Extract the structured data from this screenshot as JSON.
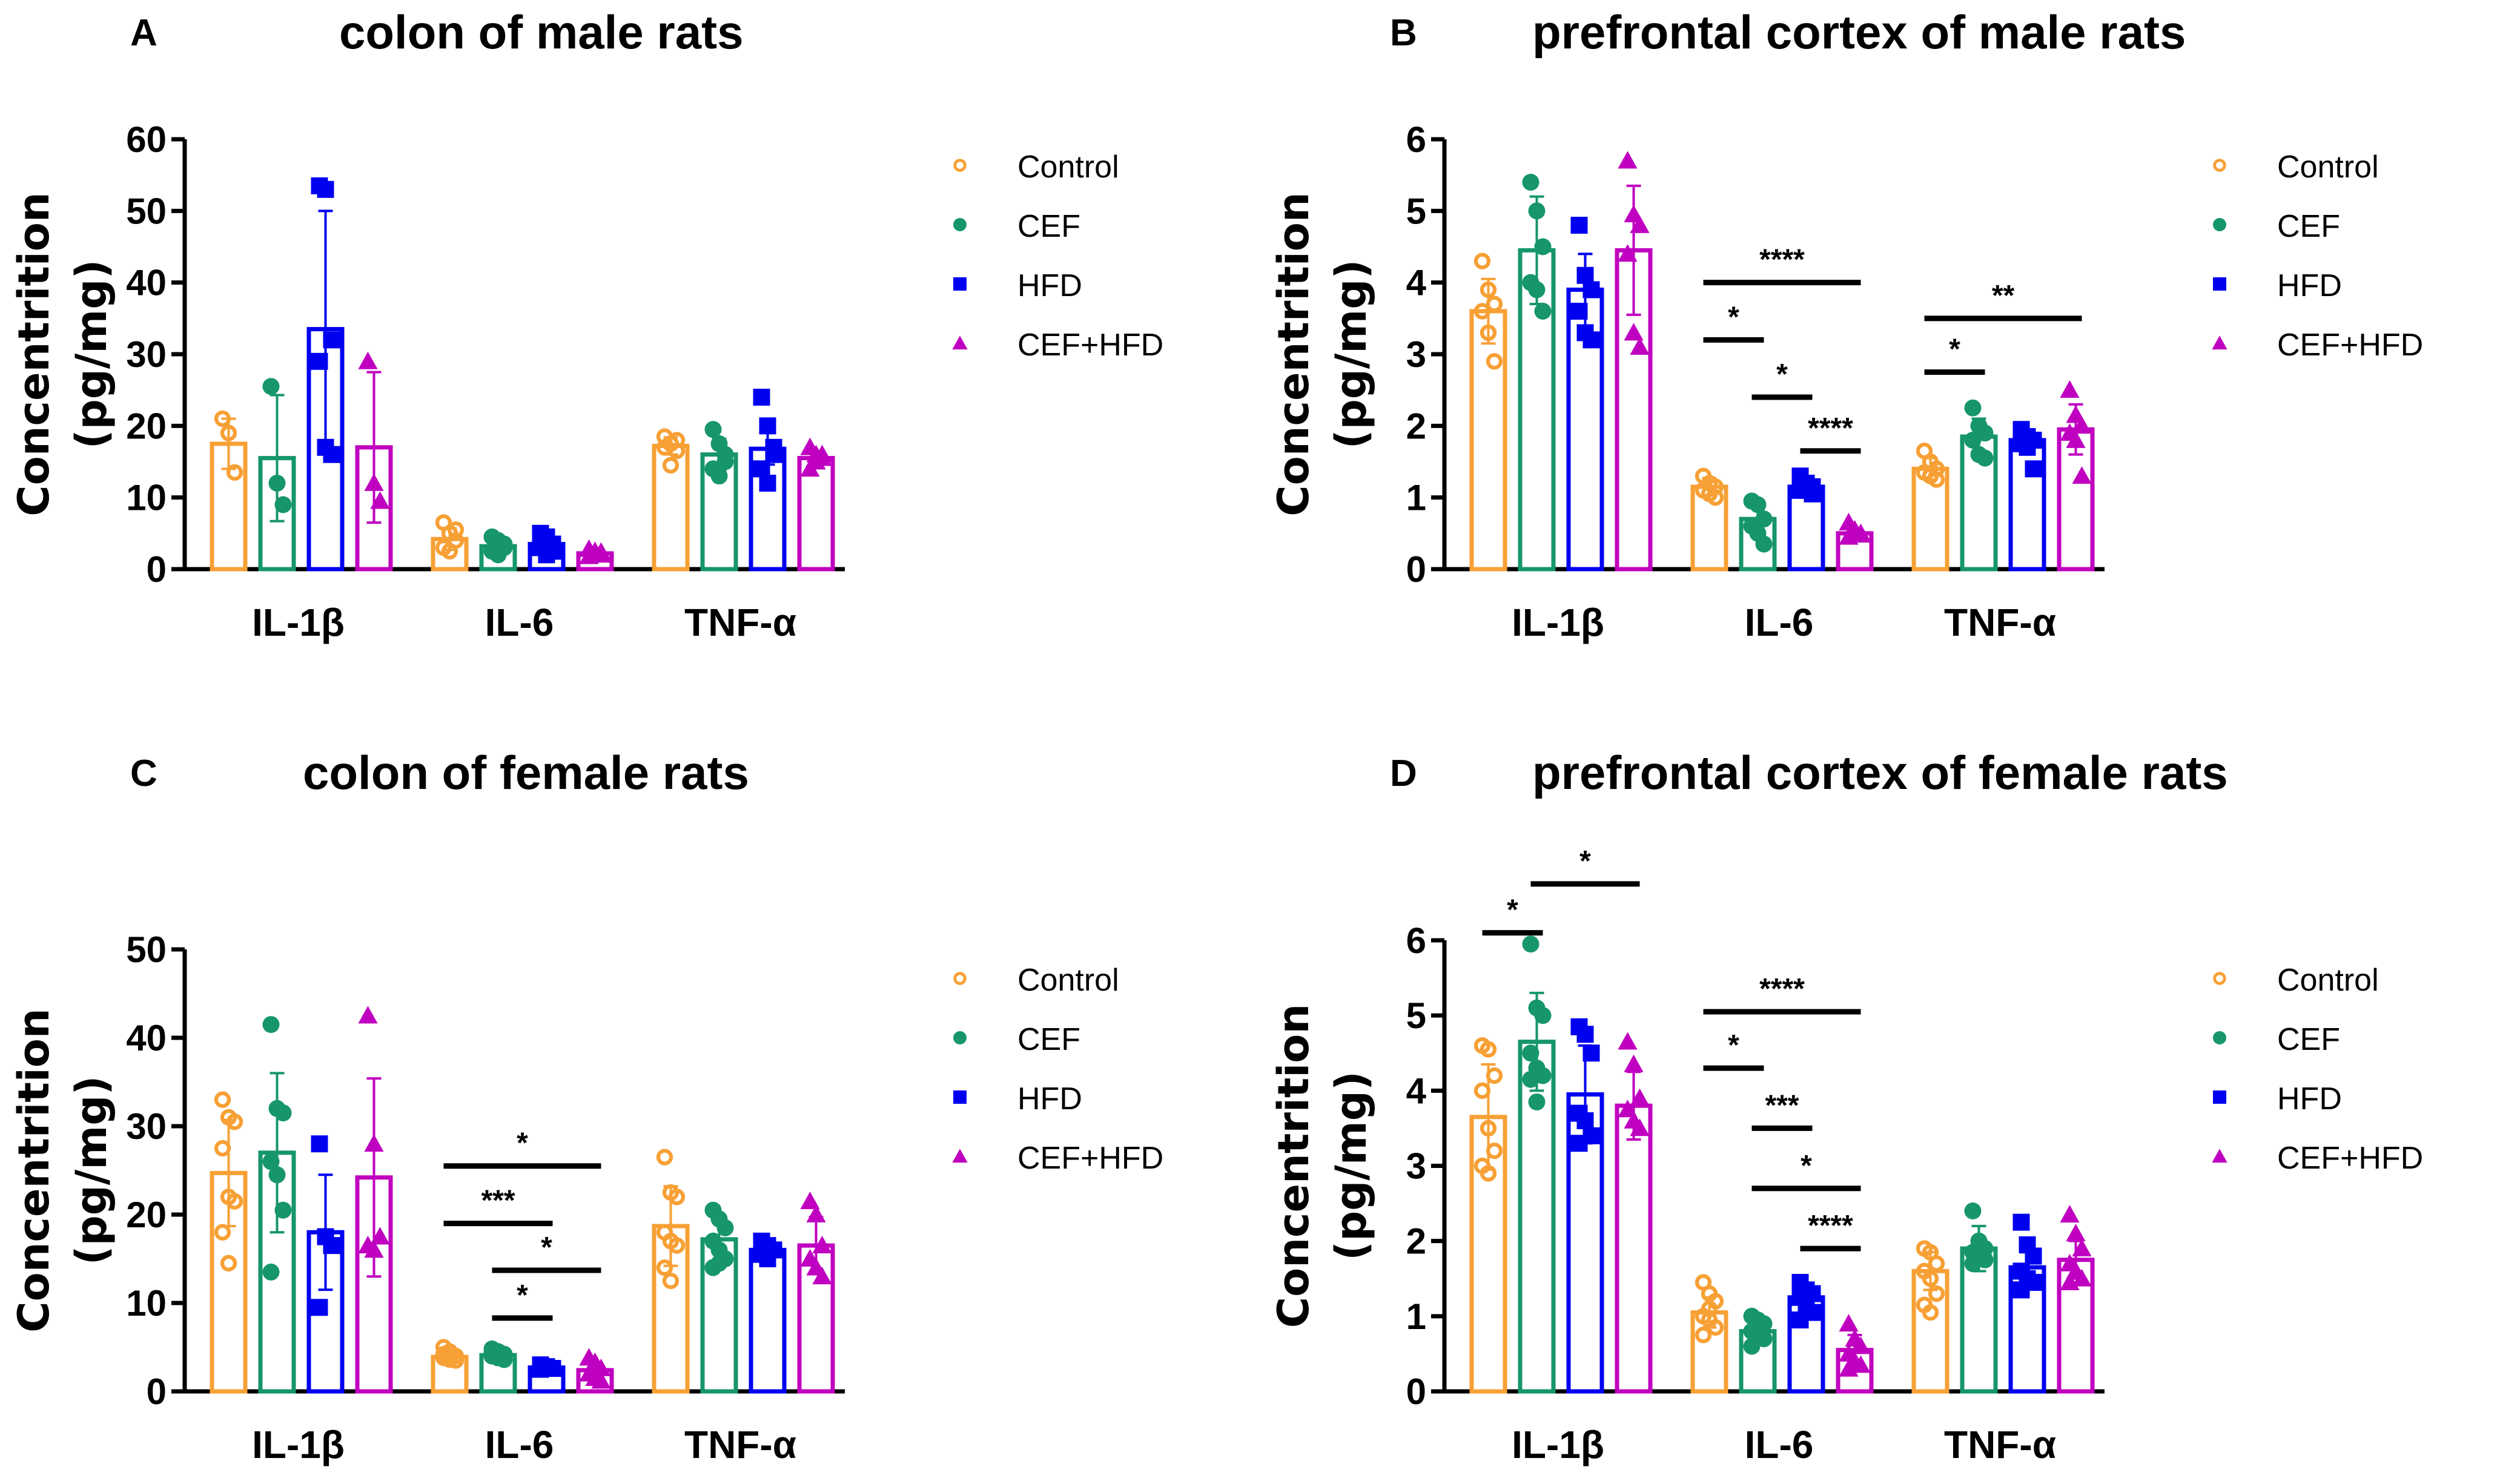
{
  "chart_data": [
    {
      "type": "bar",
      "panel": "A",
      "title": "colon of male rats",
      "ylabel": "Concentrition\n(pg/mg)",
      "ylabel_lines": [
        "Concentrition",
        "(pg/mg)"
      ],
      "xlabel": "",
      "categories": [
        "IL-1β",
        "IL-6",
        "TNF-α"
      ],
      "ylim": [
        0,
        60
      ],
      "yticks": [
        0,
        10,
        20,
        30,
        40,
        50,
        60
      ],
      "grid": false,
      "legend_position": "right",
      "series": [
        {
          "name": "Control",
          "values": [
            17.5,
            4.2,
            17.2
          ],
          "sd": [
            3.5,
            1.5,
            1.2
          ],
          "points": [
            [
              21,
              19,
              13.5
            ],
            [
              6.5,
              5,
              4,
              3,
              2.5,
              5.5
            ],
            [
              18.5,
              17.5,
              16.5,
              17,
              14.5,
              18
            ]
          ]
        },
        {
          "name": "CEF",
          "values": [
            15.5,
            3.2,
            16
          ],
          "sd": [
            8.8,
            1.0,
            2.2
          ],
          "points": [
            [
              25.5,
              12,
              9
            ],
            [
              4.5,
              4,
              3.5,
              2.5,
              2,
              3
            ],
            [
              19.5,
              17.5,
              15,
              14,
              13,
              16
            ]
          ]
        },
        {
          "name": "HFD",
          "values": [
            33.5,
            3.5,
            16.8
          ],
          "sd": [
            16.5,
            1.3,
            2.2
          ],
          "points": [
            [
              53.5,
              53,
              32,
              29,
              17,
              16
            ],
            [
              5,
              4.5,
              3.5,
              3,
              2,
              2.5
            ],
            [
              24,
              20,
              16,
              14,
              12,
              17
            ]
          ]
        },
        {
          "name": "CEF+HFD",
          "values": [
            17,
            2.2,
            15.5
          ],
          "sd": [
            10.5,
            0.5,
            0.9
          ],
          "points": [
            [
              29,
              12,
              9.5
            ],
            [
              2.8,
              2.5,
              2,
              1.8,
              2.2,
              2.4
            ],
            [
              17,
              16,
              15.5,
              14,
              15,
              16
            ]
          ]
        }
      ],
      "significance": []
    },
    {
      "type": "bar",
      "panel": "B",
      "title": "prefrontal cortex of male rats",
      "ylabel_lines": [
        "Concentrition",
        "(pg/mg)"
      ],
      "xlabel": "",
      "categories": [
        "IL-1β",
        "IL-6",
        "TNF-α"
      ],
      "ylim": [
        0,
        6
      ],
      "yticks": [
        0,
        1,
        2,
        3,
        4,
        5,
        6
      ],
      "grid": false,
      "legend_position": "right",
      "series": [
        {
          "name": "Control",
          "values": [
            3.6,
            1.15,
            1.4
          ],
          "sd": [
            0.45,
            0.12,
            0.15
          ],
          "points": [
            [
              4.3,
              3.9,
              3.7,
              3.6,
              3.3,
              2.9
            ],
            [
              1.3,
              1.2,
              1.15,
              1.1,
              1.05,
              1.0
            ],
            [
              1.65,
              1.5,
              1.4,
              1.35,
              1.3,
              1.25
            ]
          ]
        },
        {
          "name": "CEF",
          "values": [
            4.45,
            0.7,
            1.85
          ],
          "sd": [
            0.75,
            0.2,
            0.25
          ],
          "points": [
            [
              5.4,
              5.0,
              4.5,
              4.0,
              3.9,
              3.6
            ],
            [
              0.95,
              0.9,
              0.7,
              0.6,
              0.5,
              0.35
            ],
            [
              2.25,
              2.0,
              1.9,
              1.8,
              1.6,
              1.55
            ]
          ]
        },
        {
          "name": "HFD",
          "values": [
            3.9,
            1.15,
            1.8
          ],
          "sd": [
            0.5,
            0.1,
            0.15
          ],
          "points": [
            [
              4.8,
              4.1,
              3.9,
              3.6,
              3.3,
              3.2
            ],
            [
              1.3,
              1.2,
              1.15,
              1.1,
              1.1,
              1.05
            ],
            [
              1.95,
              1.85,
              1.8,
              1.75,
              1.7,
              1.4
            ]
          ]
        },
        {
          "name": "CEF+HFD",
          "values": [
            4.45,
            0.5,
            1.95
          ],
          "sd": [
            0.9,
            0.05,
            0.35
          ],
          "points": [
            [
              5.7,
              4.95,
              4.8,
              4.4,
              3.3,
              3.1
            ],
            [
              0.65,
              0.55,
              0.5,
              0.45,
              0.5,
              0.48
            ],
            [
              2.5,
              2.15,
              2.0,
              1.9,
              1.8,
              1.3
            ]
          ]
        }
      ],
      "significance": [
        {
          "category": "IL-6",
          "from": "Control",
          "to": "CEF+HFD",
          "y": 4.0,
          "label": "****"
        },
        {
          "category": "IL-6",
          "from": "Control",
          "to": "CEF",
          "y": 3.2,
          "label": "*"
        },
        {
          "category": "IL-6",
          "from": "CEF",
          "to": "HFD",
          "y": 2.4,
          "label": "*"
        },
        {
          "category": "IL-6",
          "from": "HFD",
          "to": "CEF+HFD",
          "y": 1.65,
          "label": "****"
        },
        {
          "category": "TNF-α",
          "from": "Control",
          "to": "CEF+HFD",
          "y": 3.5,
          "label": "**"
        },
        {
          "category": "TNF-α",
          "from": "Control",
          "to": "CEF",
          "y": 2.75,
          "label": "*"
        }
      ]
    },
    {
      "type": "bar",
      "panel": "C",
      "title": "colon of female rats",
      "ylabel_lines": [
        "Concentrition",
        "(pg/mg)"
      ],
      "xlabel": "",
      "categories": [
        "IL-1β",
        "IL-6",
        "TNF-α"
      ],
      "ylim": [
        0,
        50
      ],
      "yticks": [
        0,
        10,
        20,
        30,
        40,
        50
      ],
      "grid": false,
      "legend_position": "right",
      "series": [
        {
          "name": "Control",
          "values": [
            24.7,
            3.9,
            18.7
          ],
          "sd": [
            6.0,
            0.5,
            4.5
          ],
          "points": [
            [
              33,
              31,
              30.5,
              27.5,
              22,
              21.5,
              18,
              14.5
            ],
            [
              5,
              4.5,
              4,
              3.8,
              3.6,
              3.5,
              4.2,
              3.9
            ],
            [
              26.5,
              22.5,
              22,
              18,
              17,
              16.5,
              14,
              12.5
            ]
          ]
        },
        {
          "name": "CEF",
          "values": [
            27,
            4.1,
            17.2
          ],
          "sd": [
            9.0,
            0.5,
            2.5
          ],
          "points": [
            [
              41.5,
              32,
              31.5,
              26,
              24.5,
              20.5,
              13.5
            ],
            [
              4.8,
              4.5,
              4.2,
              4,
              3.8,
              3.6,
              4.4,
              3.9
            ],
            [
              20.5,
              19.5,
              18.5,
              17,
              16,
              15,
              14,
              14.5
            ]
          ]
        },
        {
          "name": "HFD",
          "values": [
            18,
            2.7,
            16
          ],
          "sd": [
            6.5,
            0.3,
            0.8
          ],
          "points": [
            [
              28,
              17.5,
              16.5,
              9.5
            ],
            [
              3,
              2.8,
              2.6,
              2.5
            ],
            [
              17,
              16.5,
              16,
              15.5,
              15
            ]
          ]
        },
        {
          "name": "CEF+HFD",
          "values": [
            24.2,
            2.4,
            16.5
          ],
          "sd": [
            11.2,
            0.7,
            3.2
          ],
          "points": [
            [
              42.5,
              28,
              17.5,
              16.5,
              16
            ],
            [
              3.8,
              3.3,
              2.6,
              2,
              1.5,
              1.2
            ],
            [
              21.5,
              20,
              16.5,
              15,
              14,
              13
            ]
          ]
        }
      ],
      "significance": [
        {
          "category": "IL-6",
          "from": "Control",
          "to": "CEF+HFD",
          "y": 25.5,
          "label": "*"
        },
        {
          "category": "IL-6",
          "from": "Control",
          "to": "HFD",
          "y": 19.0,
          "label": "***"
        },
        {
          "category": "IL-6",
          "from": "CEF",
          "to": "CEF+HFD",
          "y": 13.7,
          "label": "*"
        },
        {
          "category": "IL-6",
          "from": "CEF",
          "to": "HFD",
          "y": 8.3,
          "label": "*"
        }
      ]
    },
    {
      "type": "bar",
      "panel": "D",
      "title": "prefrontal cortex of female rats",
      "ylabel_lines": [
        "Concentrition",
        "(pg/mg)"
      ],
      "xlabel": "",
      "categories": [
        "IL-1β",
        "IL-6",
        "TNF-α"
      ],
      "ylim": [
        0,
        6
      ],
      "yticks": [
        0,
        1,
        2,
        3,
        4,
        5,
        6
      ],
      "grid": false,
      "legend_position": "right",
      "series": [
        {
          "name": "Control",
          "values": [
            3.65,
            1.05,
            1.6
          ],
          "sd": [
            0.7,
            0.2,
            0.25
          ],
          "points": [
            [
              4.6,
              4.55,
              4.2,
              4.0,
              3.5,
              3.2,
              3.0,
              2.9
            ],
            [
              1.45,
              1.3,
              1.2,
              1.0,
              0.95,
              0.85,
              0.75,
              1.1
            ],
            [
              1.9,
              1.85,
              1.7,
              1.6,
              1.5,
              1.3,
              1.15,
              1.05
            ]
          ]
        },
        {
          "name": "CEF",
          "values": [
            4.65,
            0.8,
            1.9
          ],
          "sd": [
            0.65,
            0.15,
            0.3
          ],
          "points": [
            [
              5.95,
              5.1,
              5.0,
              4.5,
              4.3,
              4.2,
              4.15,
              3.85
            ],
            [
              1.0,
              0.95,
              0.9,
              0.8,
              0.75,
              0.7,
              0.6
            ],
            [
              2.4,
              2.0,
              1.9,
              1.85,
              1.8,
              1.75,
              1.7
            ]
          ]
        },
        {
          "name": "HFD",
          "values": [
            3.95,
            1.25,
            1.65
          ],
          "sd": [
            0.65,
            0.15,
            0.2
          ],
          "points": [
            [
              4.85,
              4.75,
              4.5,
              3.7,
              3.6,
              3.4,
              3.3
            ],
            [
              1.45,
              1.35,
              1.3,
              1.25,
              1.15,
              1.05,
              0.95
            ],
            [
              2.25,
              1.95,
              1.8,
              1.6,
              1.5,
              1.45,
              1.35
            ]
          ]
        },
        {
          "name": "CEF+HFD",
          "values": [
            3.8,
            0.55,
            1.75
          ],
          "sd": [
            0.45,
            0.2,
            0.25
          ],
          "points": [
            [
              4.65,
              4.35,
              3.9,
              3.75,
              3.6,
              3.5
            ],
            [
              0.9,
              0.7,
              0.6,
              0.5,
              0.4,
              0.35,
              0.3
            ],
            [
              2.35,
              2.1,
              1.9,
              1.7,
              1.6,
              1.5,
              1.45
            ]
          ]
        }
      ],
      "significance": [
        {
          "category": "IL-1β",
          "from": "Control",
          "to": "CEF",
          "y": 6.1,
          "label": "*"
        },
        {
          "category": "IL-1β",
          "from": "CEF",
          "to": "CEF+HFD",
          "y": 6.75,
          "label": "*"
        },
        {
          "category": "IL-6",
          "from": "Control",
          "to": "CEF+HFD",
          "y": 5.05,
          "label": "****"
        },
        {
          "category": "IL-6",
          "from": "Control",
          "to": "CEF",
          "y": 4.3,
          "label": "*"
        },
        {
          "category": "IL-6",
          "from": "CEF",
          "to": "HFD",
          "y": 3.5,
          "label": "***"
        },
        {
          "category": "IL-6",
          "from": "CEF",
          "to": "CEF+HFD",
          "y": 2.7,
          "label": "*"
        },
        {
          "category": "IL-6",
          "from": "HFD",
          "to": "CEF+HFD",
          "y": 1.9,
          "label": "****"
        }
      ]
    }
  ],
  "legend": {
    "items": [
      {
        "name": "Control",
        "marker": "open-circle-icon",
        "color": "#F7A035"
      },
      {
        "name": "CEF",
        "marker": "filled-circle-icon",
        "color": "#16966A"
      },
      {
        "name": "HFD",
        "marker": "filled-square-icon",
        "color": "#0000F0"
      },
      {
        "name": "CEF+HFD",
        "marker": "filled-triangle-icon",
        "color": "#C000C0"
      }
    ]
  }
}
